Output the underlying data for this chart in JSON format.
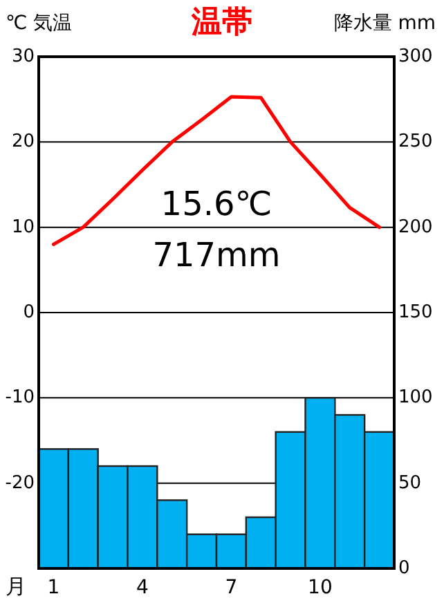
{
  "chart_data": {
    "type": "bar",
    "title": "温帯",
    "xlabel": "月",
    "ylabel": "℃ 気温",
    "y2label": "降水量 mm",
    "categories": [
      "1",
      null,
      null,
      "4",
      null,
      null,
      "7",
      null,
      null,
      "10",
      null,
      null
    ],
    "series": [
      {
        "name": null,
        "axis": "y2",
        "color": "#00b0f0",
        "values": [
          70,
          70,
          60,
          60,
          40,
          20,
          20,
          30,
          80,
          100,
          90,
          80
        ]
      },
      {
        "name": null,
        "type": "line",
        "axis": "y",
        "color": "#ff0000",
        "values": [
          8,
          10,
          13.3,
          16.7,
          20,
          22.6,
          25.3,
          25.2,
          20,
          16.2,
          12.3,
          10
        ]
      }
    ],
    "ylim": [
      -30,
      30
    ],
    "yticks": [
      -20,
      -10,
      0,
      10,
      20,
      30
    ],
    "y2lim": [
      0,
      300
    ],
    "y2ticks": [
      0,
      50,
      100,
      150,
      200,
      250,
      300
    ],
    "grid": "y",
    "annotations": [
      "15.6℃",
      "717mm"
    ]
  }
}
